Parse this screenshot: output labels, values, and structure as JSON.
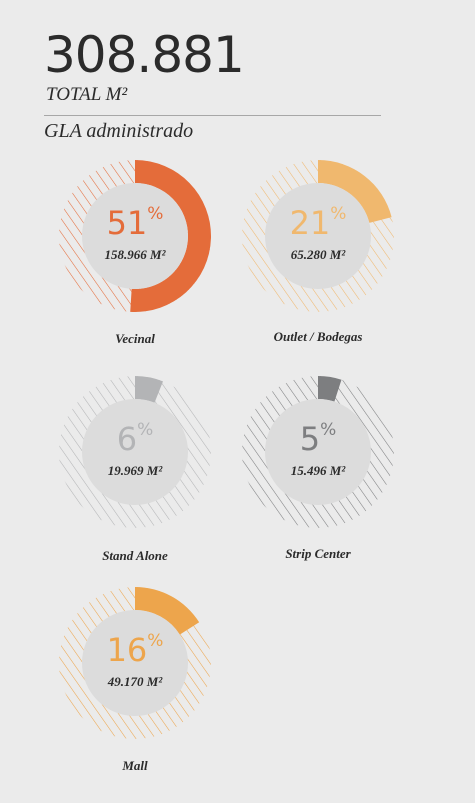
{
  "header": {
    "total": "308.881",
    "total_label": "TOTAL M²",
    "subtitle": "GLA administrado"
  },
  "chart_data": {
    "type": "pie",
    "style": "donut",
    "series": [
      {
        "category": "Vecinal",
        "percent": 51,
        "percent_label": "51",
        "area_label": "158.966 M²",
        "value": 158966,
        "color": "#e46c3a"
      },
      {
        "category": "Outlet / Bodegas",
        "percent": 21,
        "percent_label": "21",
        "area_label": "65.280 M²",
        "value": 65280,
        "color": "#f0b86e"
      },
      {
        "category": "Stand Alone",
        "percent": 6,
        "percent_label": "6",
        "area_label": "19.969 M²",
        "value": 19969,
        "color": "#b3b4b6"
      },
      {
        "category": "Strip Center",
        "percent": 5,
        "percent_label": "5",
        "area_label": "15.496 M²",
        "value": 15496,
        "color": "#7d7e80"
      },
      {
        "category": "Mall",
        "percent": 16,
        "percent_label": "16",
        "area_label": "49.170 M²",
        "value": 49170,
        "color": "#eda54c"
      }
    ],
    "percent_symbol": "%"
  }
}
